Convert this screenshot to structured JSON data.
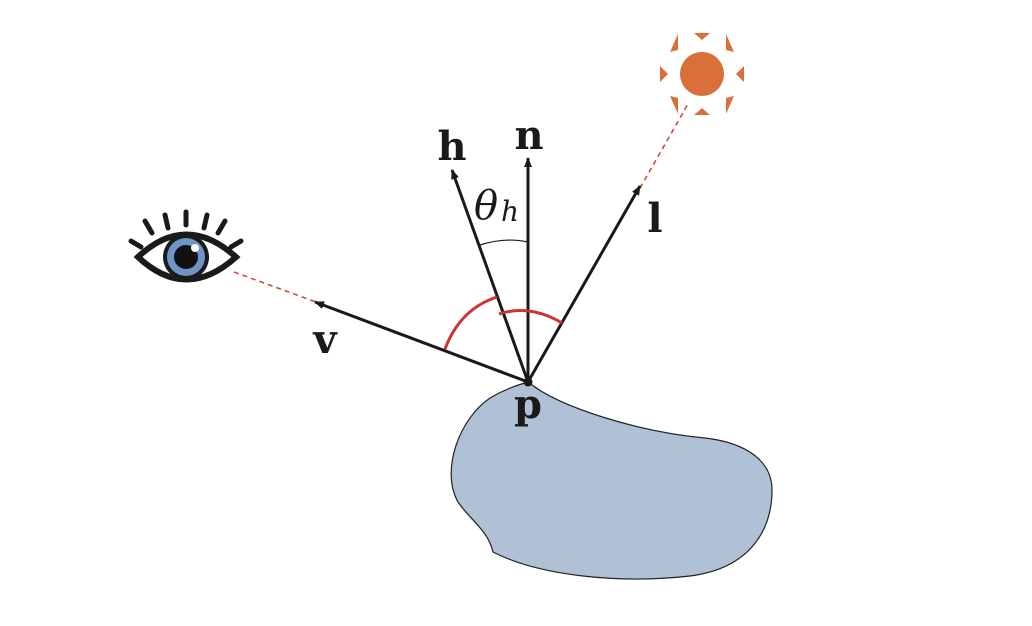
{
  "colors": {
    "surface_fill": "#b0c1d6",
    "vector": "#1a1a1a",
    "dashed_ray": "#d24a3c",
    "angle_arc": "#cc3333",
    "sun": "#d9703a",
    "eye_iris": "#6f95c4"
  },
  "icons": {
    "viewer": "eye-icon",
    "light_source": "sun-icon"
  },
  "labels": {
    "point": "p",
    "normal": "n",
    "half_vector": "h",
    "light": "l",
    "view": "v",
    "theta": "θ",
    "theta_sub": "h"
  }
}
